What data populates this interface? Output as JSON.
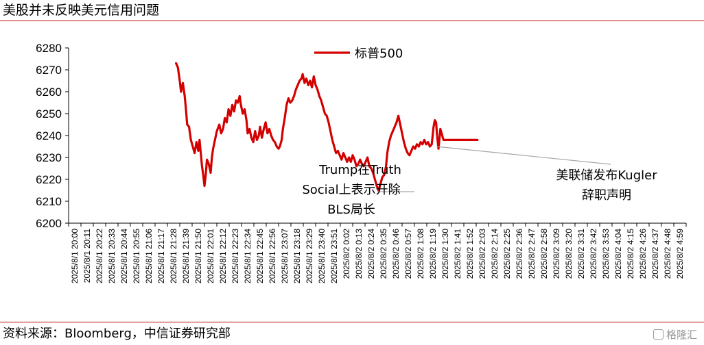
{
  "page": {
    "title": "美股并未反映美元信用问题",
    "source": "资料来源：Bloomberg，中信证券研究部",
    "watermark": "格隆汇"
  },
  "colors": {
    "series": "#d40000",
    "rule": "#c00000",
    "annotation_line": "#a6a6a6",
    "axis": "#000000"
  },
  "chart_data": {
    "type": "line",
    "title": "",
    "xlabel": "",
    "ylabel": "",
    "ylim": [
      6200,
      6280
    ],
    "yticks": [
      6200,
      6210,
      6220,
      6230,
      6240,
      6250,
      6260,
      6270,
      6280
    ],
    "grid": false,
    "legend_position": "top-center",
    "x_tick_labels": [
      "2025/8/1 20:00",
      "2025/8/1 20:11",
      "2025/8/1 20:22",
      "2025/8/1 20:33",
      "2025/8/1 20:44",
      "2025/8/1 20:55",
      "2025/8/1 21:06",
      "2025/8/1 21:17",
      "2025/8/1 21:28",
      "2025/8/1 21:39",
      "2025/8/1 21:50",
      "2025/8/1 22:01",
      "2025/8/1 22:12",
      "2025/8/1 22:23",
      "2025/8/1 22:34",
      "2025/8/1 22:45",
      "2025/8/1 22:56",
      "2025/8/1 23:07",
      "2025/8/1 23:18",
      "2025/8/1 23:29",
      "2025/8/1 23:40",
      "2025/8/1 23:51",
      "2025/8/2 0:02",
      "2025/8/2 0:13",
      "2025/8/2 0:24",
      "2025/8/2 0:35",
      "2025/8/2 0:46",
      "2025/8/2 0:57",
      "2025/8/2 1:08",
      "2025/8/2 1:19",
      "2025/8/2 1:30",
      "2025/8/2 1:41",
      "2025/8/2 1:52",
      "2025/8/2 2:03",
      "2025/8/2 2:14",
      "2025/8/2 2:25",
      "2025/8/2 2:36",
      "2025/8/2 2:47",
      "2025/8/2 2:58",
      "2025/8/2 3:09",
      "2025/8/2 3:20",
      "2025/8/2 3:31",
      "2025/8/2 3:42",
      "2025/8/2 3:53",
      "2025/8/2 4:04",
      "2025/8/2 4:15",
      "2025/8/2 4:26",
      "2025/8/2 4:37",
      "2025/8/2 4:48",
      "2025/8/2 4:59"
    ],
    "series": [
      {
        "name": "标普500",
        "points": [
          [
            8.2,
            6273
          ],
          [
            8.35,
            6271
          ],
          [
            8.5,
            6265
          ],
          [
            8.6,
            6260
          ],
          [
            8.75,
            6264
          ],
          [
            8.9,
            6258
          ],
          [
            9.0,
            6252
          ],
          [
            9.1,
            6245
          ],
          [
            9.25,
            6244
          ],
          [
            9.4,
            6238
          ],
          [
            9.55,
            6235
          ],
          [
            9.7,
            6232
          ],
          [
            9.85,
            6237
          ],
          [
            10.0,
            6233
          ],
          [
            10.1,
            6238
          ],
          [
            10.2,
            6232
          ],
          [
            10.3,
            6226
          ],
          [
            10.4,
            6222
          ],
          [
            10.5,
            6217
          ],
          [
            10.6,
            6222
          ],
          [
            10.7,
            6229
          ],
          [
            10.85,
            6227
          ],
          [
            11.0,
            6223
          ],
          [
            11.1,
            6230
          ],
          [
            11.2,
            6234
          ],
          [
            11.35,
            6238
          ],
          [
            11.5,
            6242
          ],
          [
            11.7,
            6245
          ],
          [
            11.85,
            6241
          ],
          [
            12.0,
            6243
          ],
          [
            12.15,
            6248
          ],
          [
            12.3,
            6246
          ],
          [
            12.45,
            6252
          ],
          [
            12.6,
            6249
          ],
          [
            12.75,
            6254
          ],
          [
            12.9,
            6251
          ],
          [
            13.05,
            6256
          ],
          [
            13.2,
            6255
          ],
          [
            13.35,
            6258
          ],
          [
            13.45,
            6254
          ],
          [
            13.6,
            6250
          ],
          [
            13.75,
            6252
          ],
          [
            13.9,
            6247
          ],
          [
            14.0,
            6241
          ],
          [
            14.15,
            6243
          ],
          [
            14.3,
            6239
          ],
          [
            14.45,
            6237
          ],
          [
            14.6,
            6242
          ],
          [
            14.75,
            6238
          ],
          [
            14.9,
            6240
          ],
          [
            15.0,
            6244
          ],
          [
            15.15,
            6239
          ],
          [
            15.3,
            6243
          ],
          [
            15.45,
            6246
          ],
          [
            15.6,
            6241
          ],
          [
            15.75,
            6243
          ],
          [
            15.9,
            6240
          ],
          [
            16.05,
            6238
          ],
          [
            16.2,
            6237
          ],
          [
            16.35,
            6235
          ],
          [
            16.5,
            6234
          ],
          [
            16.6,
            6235
          ],
          [
            16.75,
            6238
          ],
          [
            16.85,
            6243
          ],
          [
            17.0,
            6248
          ],
          [
            17.15,
            6254
          ],
          [
            17.3,
            6257
          ],
          [
            17.45,
            6255
          ],
          [
            17.6,
            6256
          ],
          [
            17.75,
            6258
          ],
          [
            17.9,
            6261
          ],
          [
            18.05,
            6263
          ],
          [
            18.2,
            6265
          ],
          [
            18.35,
            6266
          ],
          [
            18.45,
            6268
          ],
          [
            18.6,
            6264
          ],
          [
            18.75,
            6266
          ],
          [
            18.9,
            6263
          ],
          [
            19.05,
            6265
          ],
          [
            19.2,
            6262
          ],
          [
            19.35,
            6267
          ],
          [
            19.5,
            6263
          ],
          [
            19.65,
            6261
          ],
          [
            19.8,
            6258
          ],
          [
            19.95,
            6256
          ],
          [
            20.1,
            6253
          ],
          [
            20.25,
            6250
          ],
          [
            20.4,
            6249
          ],
          [
            20.55,
            6246
          ],
          [
            20.7,
            6242
          ],
          [
            20.85,
            6238
          ],
          [
            21.0,
            6235
          ],
          [
            21.15,
            6232
          ],
          [
            21.3,
            6233
          ],
          [
            21.45,
            6231
          ],
          [
            21.6,
            6229
          ],
          [
            21.75,
            6232
          ],
          [
            21.9,
            6230
          ],
          [
            22.05,
            6228
          ],
          [
            22.2,
            6230
          ],
          [
            22.35,
            6228
          ],
          [
            22.5,
            6231
          ],
          [
            22.65,
            6229
          ],
          [
            22.8,
            6226
          ],
          [
            22.95,
            6227
          ],
          [
            23.1,
            6229
          ],
          [
            23.25,
            6227
          ],
          [
            23.4,
            6226
          ],
          [
            23.55,
            6228
          ],
          [
            23.7,
            6230
          ],
          [
            23.85,
            6226
          ],
          [
            24.0,
            6225
          ],
          [
            24.15,
            6223
          ],
          [
            24.3,
            6220
          ],
          [
            24.45,
            6217
          ],
          [
            24.6,
            6215
          ],
          [
            24.75,
            6218
          ],
          [
            24.9,
            6221
          ],
          [
            25.05,
            6222
          ],
          [
            25.2,
            6226
          ],
          [
            25.3,
            6232
          ],
          [
            25.45,
            6237
          ],
          [
            25.6,
            6240
          ],
          [
            25.75,
            6242
          ],
          [
            25.9,
            6244
          ],
          [
            26.05,
            6246
          ],
          [
            26.2,
            6249
          ],
          [
            26.35,
            6245
          ],
          [
            26.5,
            6241
          ],
          [
            26.65,
            6237
          ],
          [
            26.8,
            6234
          ],
          [
            26.95,
            6232
          ],
          [
            27.1,
            6231
          ],
          [
            27.25,
            6233
          ],
          [
            27.4,
            6235
          ],
          [
            27.55,
            6234
          ],
          [
            27.7,
            6236
          ],
          [
            27.85,
            6235
          ],
          [
            28.0,
            6237
          ],
          [
            28.15,
            6236
          ],
          [
            28.3,
            6238
          ],
          [
            28.45,
            6236
          ],
          [
            28.6,
            6237
          ],
          [
            28.75,
            6235
          ],
          [
            28.9,
            6236
          ],
          [
            29.05,
            6244
          ],
          [
            29.15,
            6247
          ],
          [
            29.25,
            6246
          ],
          [
            29.35,
            6239
          ],
          [
            29.45,
            6234
          ],
          [
            29.6,
            6243
          ],
          [
            29.75,
            6240
          ],
          [
            29.85,
            6238
          ],
          [
            30.5,
            6238
          ],
          [
            31.5,
            6238
          ],
          [
            32.6,
            6238
          ]
        ]
      }
    ],
    "annotations": [
      {
        "lines": [
          "Trump在Truth",
          "Social上表示开除",
          "BLS局长"
        ],
        "x": 24.5,
        "y": 6215
      },
      {
        "lines": [
          "美联储发布Kugler",
          "辞职声明"
        ],
        "x": 29.25,
        "y": 6235
      }
    ]
  }
}
